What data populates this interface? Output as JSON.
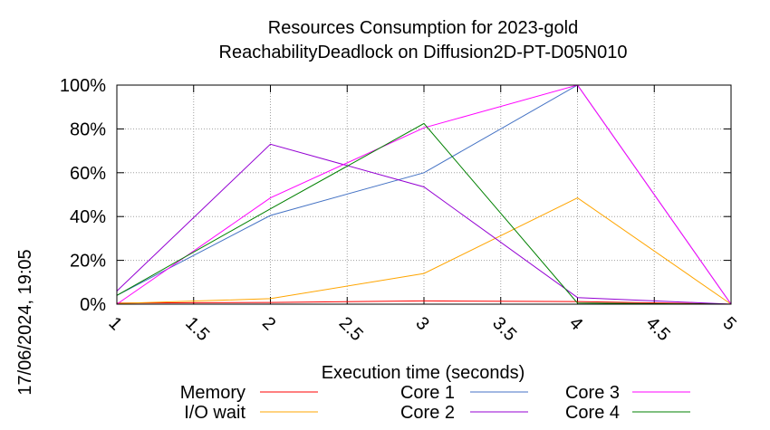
{
  "chart_data": {
    "type": "line",
    "title": "Resources Consumption for 2023-gold",
    "subtitle": "ReachabilityDeadlock on Diffusion2D-PT-D05N010",
    "xlabel": "Execution time (seconds)",
    "ylabel": "",
    "timestamp": "17/06/2024, 19:05",
    "xlim": [
      1,
      5
    ],
    "ylim": [
      0,
      100
    ],
    "x_ticks": [
      "1",
      "1.5",
      "2",
      "2.5",
      "3",
      "3.5",
      "4",
      "4.5",
      "5"
    ],
    "y_ticks": [
      "0%",
      "20%",
      "40%",
      "60%",
      "80%",
      "100%"
    ],
    "grid": true,
    "legend_position": "bottom",
    "x": [
      1,
      2,
      3,
      4,
      5
    ],
    "series": [
      {
        "name": "Memory",
        "color": "#ff0000",
        "values": [
          0.5,
          0.8,
          1.5,
          1.2,
          0
        ]
      },
      {
        "name": "I/O wait",
        "color": "#ffa500",
        "values": [
          0.3,
          2.5,
          14,
          48.5,
          0
        ]
      },
      {
        "name": "Core 1",
        "color": "#4472c4",
        "values": [
          4,
          40.5,
          60,
          100,
          0
        ]
      },
      {
        "name": "Core 2",
        "color": "#9400d3",
        "values": [
          6,
          73,
          53.5,
          3,
          0
        ]
      },
      {
        "name": "Core 3",
        "color": "#ff00ff",
        "values": [
          0,
          48.5,
          80.5,
          100,
          0
        ]
      },
      {
        "name": "Core 4",
        "color": "#008000",
        "values": [
          4,
          43.5,
          82.5,
          0.5,
          0
        ]
      }
    ]
  }
}
